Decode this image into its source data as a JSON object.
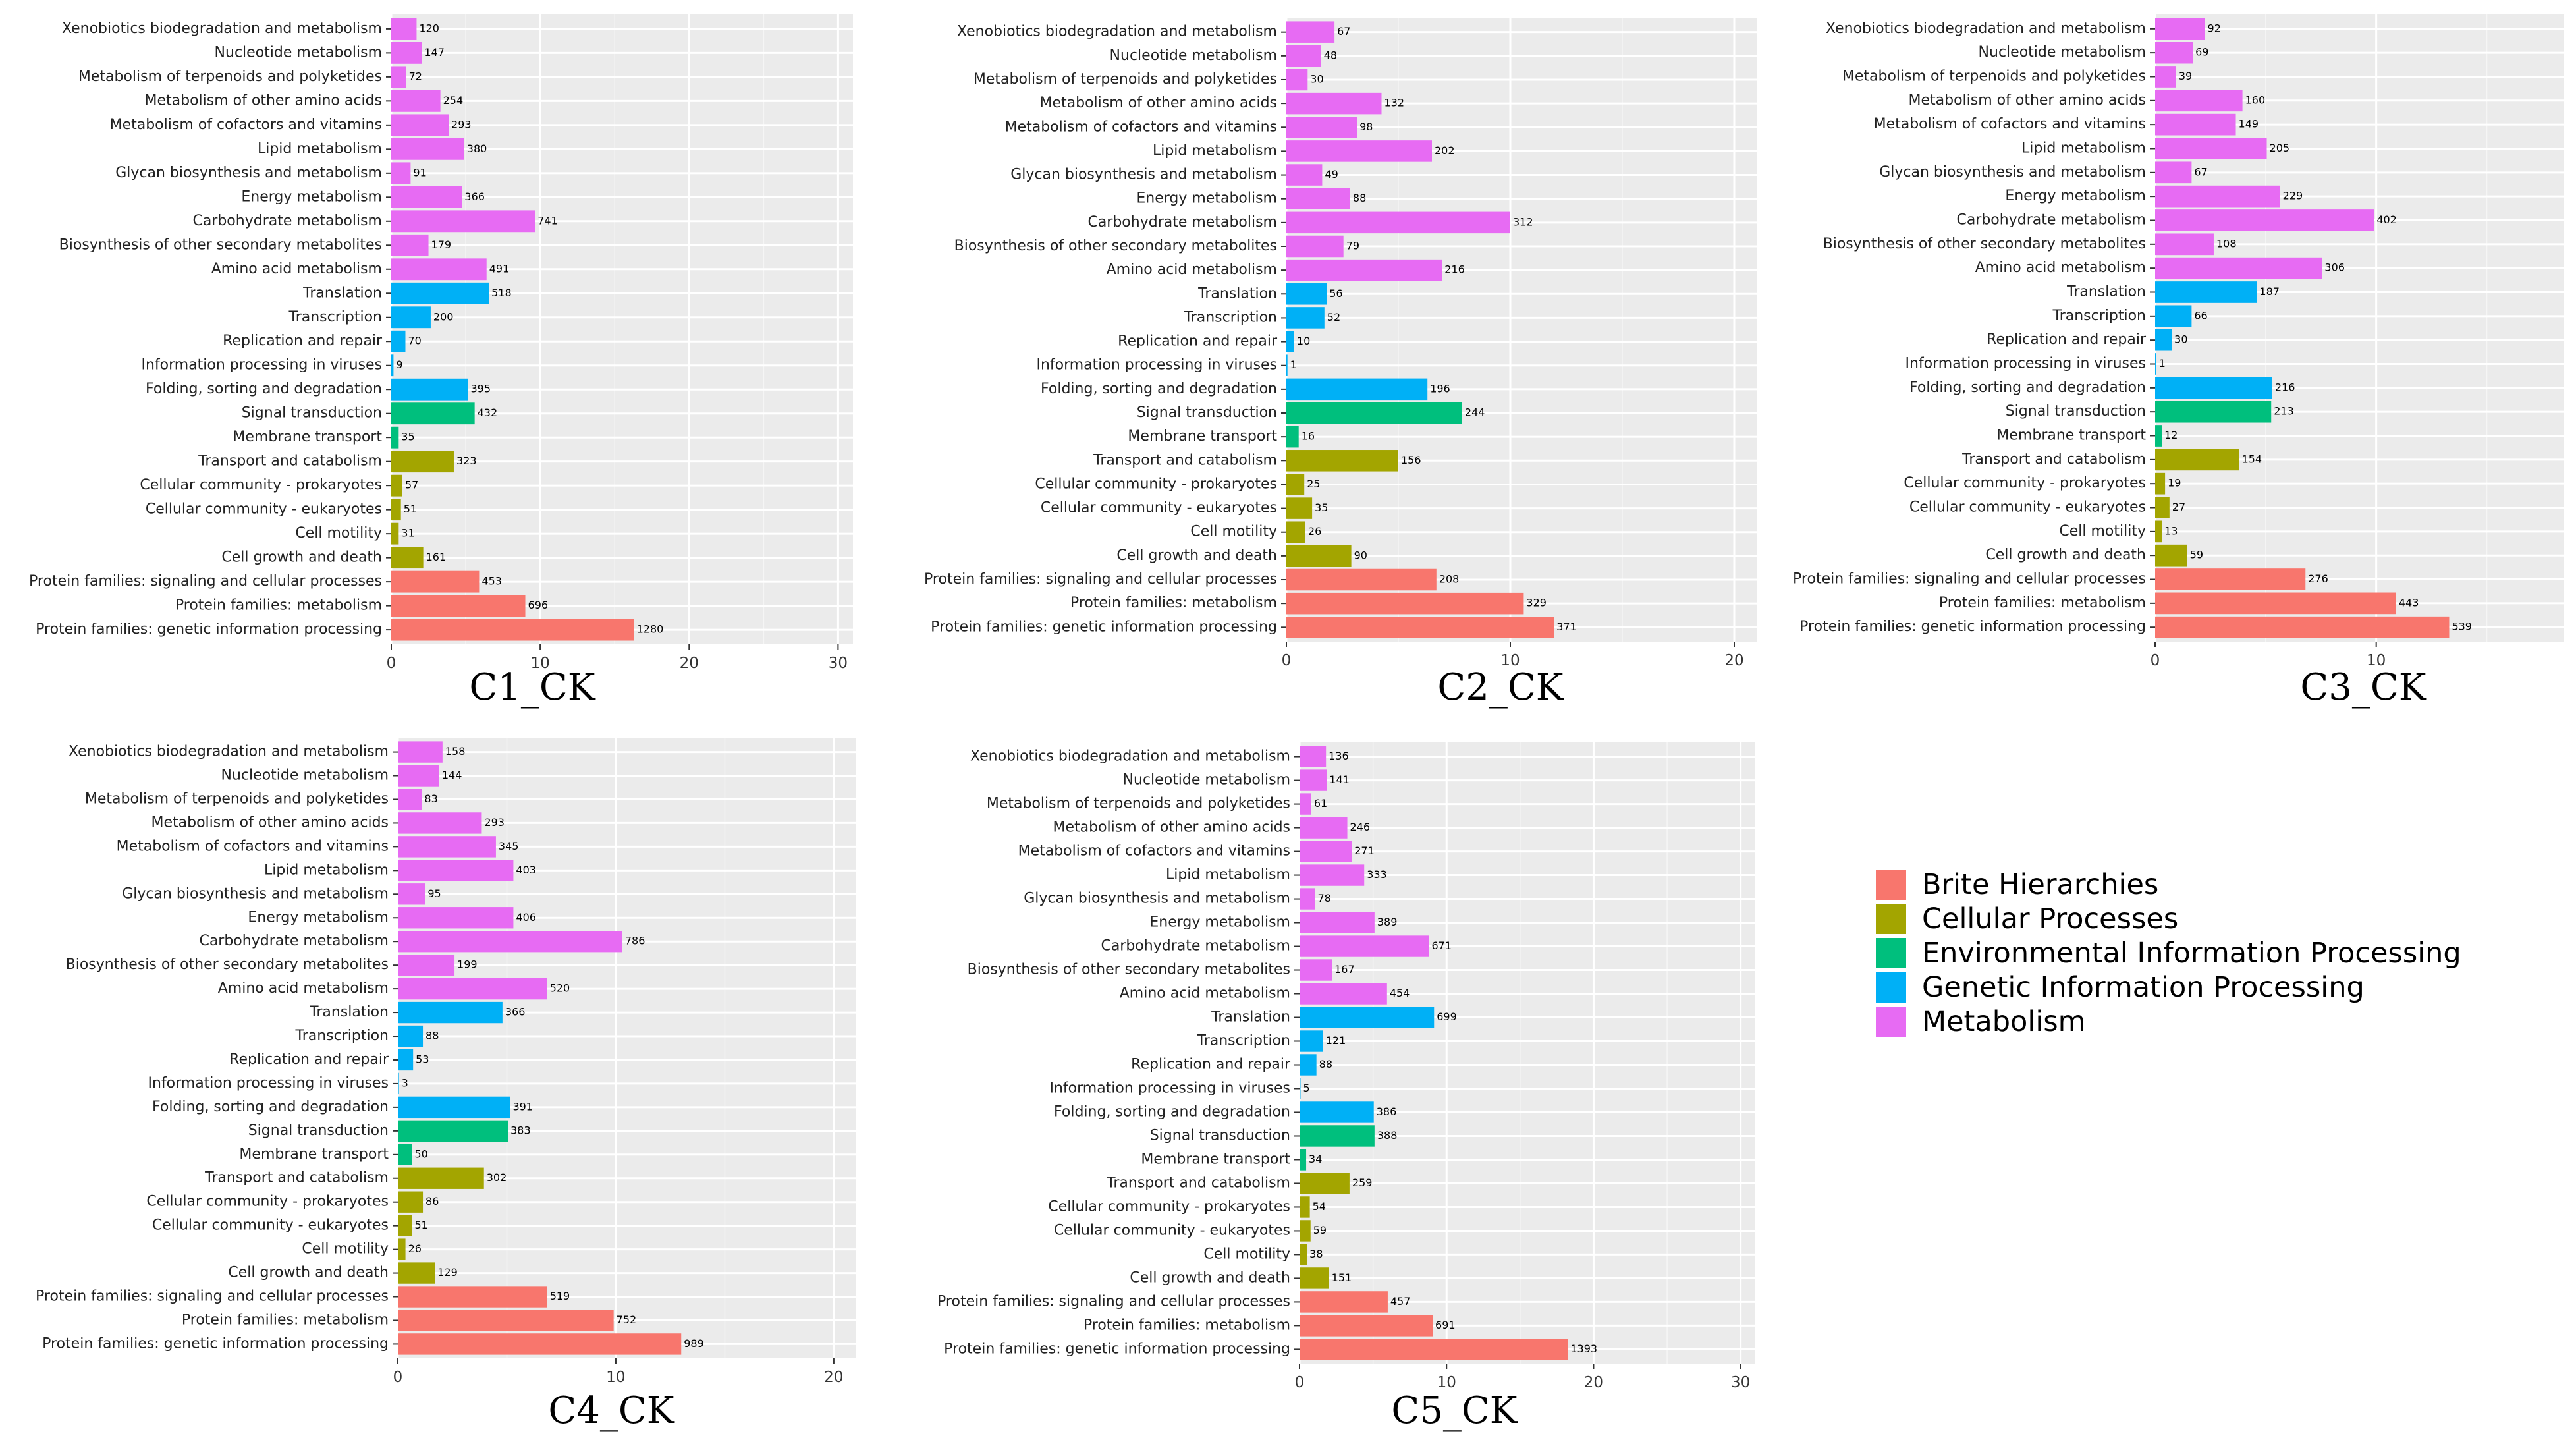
{
  "categories": [
    "Xenobiotics biodegradation and metabolism",
    "Nucleotide metabolism",
    "Metabolism of terpenoids and polyketides",
    "Metabolism of other amino acids",
    "Metabolism of cofactors and vitamins",
    "Lipid metabolism",
    "Glycan biosynthesis and metabolism",
    "Energy metabolism",
    "Carbohydrate metabolism",
    "Biosynthesis of other secondary metabolites",
    "Amino acid metabolism",
    "Translation",
    "Transcription",
    "Replication and repair",
    "Information processing in viruses",
    "Folding, sorting and degradation",
    "Signal transduction",
    "Membrane transport",
    "Transport and catabolism",
    "Cellular community - prokaryotes",
    "Cellular community - eukaryotes",
    "Cell motility",
    "Cell growth and death",
    "Protein families: signaling and cellular processes",
    "Protein families: metabolism",
    "Protein families: genetic information processing"
  ],
  "category_groups": [
    "Metabolism",
    "Metabolism",
    "Metabolism",
    "Metabolism",
    "Metabolism",
    "Metabolism",
    "Metabolism",
    "Metabolism",
    "Metabolism",
    "Metabolism",
    "Metabolism",
    "Genetic Information Processing",
    "Genetic Information Processing",
    "Genetic Information Processing",
    "Genetic Information Processing",
    "Genetic Information Processing",
    "Environmental Information Processing",
    "Environmental Information Processing",
    "Cellular Processes",
    "Cellular Processes",
    "Cellular Processes",
    "Cellular Processes",
    "Cellular Processes",
    "Brite Hierarchies",
    "Brite Hierarchies",
    "Brite Hierarchies"
  ],
  "legend": [
    {
      "label": "Brite Hierarchies",
      "color": "#F8766D"
    },
    {
      "label": "Cellular Processes",
      "color": "#A3A500"
    },
    {
      "label": "Environmental Information Processing",
      "color": "#00BF7D"
    },
    {
      "label": "Genetic Information Processing",
      "color": "#00B0F6"
    },
    {
      "label": "Metabolism",
      "color": "#E76BF3"
    }
  ],
  "chart_data": [
    {
      "type": "bar",
      "orientation": "horizontal",
      "title": "C1_CK",
      "xlim": [
        0,
        31
      ],
      "xticks": [
        0,
        10,
        20,
        30
      ],
      "values": [
        1.7,
        2.05,
        1.0,
        3.3,
        3.85,
        4.9,
        1.3,
        4.75,
        9.65,
        2.5,
        6.4,
        6.55,
        2.65,
        0.95,
        0.15,
        5.15,
        5.6,
        0.5,
        4.2,
        0.75,
        0.65,
        0.5,
        2.15,
        5.9,
        9.0,
        16.3
      ],
      "labels": [
        "120",
        "147",
        "72",
        "254",
        "293",
        "380",
        "91",
        "366",
        "741",
        "179",
        "491",
        "518",
        "200",
        "70",
        "9",
        "395",
        "432",
        "35",
        "323",
        "57",
        "51",
        "31",
        "161",
        "453",
        "696",
        "1280"
      ]
    },
    {
      "type": "bar",
      "orientation": "horizontal",
      "title": "C2_CK",
      "xlim": [
        0,
        21
      ],
      "xticks": [
        0,
        10,
        20
      ],
      "values": [
        2.15,
        1.55,
        0.95,
        4.25,
        3.15,
        6.5,
        1.6,
        2.85,
        10.0,
        2.55,
        6.95,
        1.8,
        1.7,
        0.35,
        0.05,
        6.3,
        7.85,
        0.55,
        5.0,
        0.8,
        1.15,
        0.85,
        2.9,
        6.7,
        10.6,
        11.95
      ],
      "labels": [
        "67",
        "48",
        "30",
        "132",
        "98",
        "202",
        "49",
        "88",
        "312",
        "79",
        "216",
        "56",
        "52",
        "10",
        "1",
        "196",
        "244",
        "16",
        "156",
        "25",
        "35",
        "26",
        "90",
        "208",
        "329",
        "371"
      ]
    },
    {
      "type": "bar",
      "orientation": "horizontal",
      "title": "C3_CK",
      "xlim": [
        0,
        18.5
      ],
      "xticks": [
        0,
        10
      ],
      "values": [
        2.25,
        1.7,
        0.95,
        3.95,
        3.65,
        5.05,
        1.65,
        5.65,
        9.9,
        2.65,
        7.55,
        4.6,
        1.65,
        0.75,
        0.05,
        5.3,
        5.25,
        0.3,
        3.8,
        0.45,
        0.65,
        0.3,
        1.45,
        6.8,
        10.9,
        13.3
      ],
      "labels": [
        "92",
        "69",
        "39",
        "160",
        "149",
        "205",
        "67",
        "229",
        "402",
        "108",
        "306",
        "187",
        "66",
        "30",
        "1",
        "216",
        "213",
        "12",
        "154",
        "19",
        "27",
        "13",
        "59",
        "276",
        "443",
        "539"
      ]
    },
    {
      "type": "bar",
      "orientation": "horizontal",
      "title": "C4_CK",
      "xlim": [
        0,
        21
      ],
      "xticks": [
        0,
        10,
        20
      ],
      "values": [
        2.05,
        1.9,
        1.1,
        3.85,
        4.5,
        5.3,
        1.25,
        5.3,
        10.3,
        2.6,
        6.85,
        4.8,
        1.15,
        0.7,
        0.05,
        5.15,
        5.05,
        0.65,
        3.95,
        1.15,
        0.65,
        0.35,
        1.7,
        6.85,
        9.9,
        13.0
      ],
      "labels": [
        "158",
        "144",
        "83",
        "293",
        "345",
        "403",
        "95",
        "406",
        "786",
        "199",
        "520",
        "366",
        "88",
        "53",
        "3",
        "391",
        "383",
        "50",
        "302",
        "86",
        "51",
        "26",
        "129",
        "519",
        "752",
        "989"
      ]
    },
    {
      "type": "bar",
      "orientation": "horizontal",
      "title": "C5_CK",
      "xlim": [
        0,
        31
      ],
      "xticks": [
        0,
        10,
        20,
        30
      ],
      "values": [
        1.8,
        1.85,
        0.8,
        3.25,
        3.55,
        4.4,
        1.05,
        5.1,
        8.8,
        2.2,
        5.95,
        9.15,
        1.6,
        1.15,
        0.05,
        5.05,
        5.1,
        0.45,
        3.4,
        0.7,
        0.75,
        0.5,
        2.0,
        6.0,
        9.05,
        18.25
      ],
      "labels": [
        "136",
        "141",
        "61",
        "246",
        "271",
        "333",
        "78",
        "389",
        "671",
        "167",
        "454",
        "699",
        "121",
        "88",
        "5",
        "386",
        "388",
        "34",
        "259",
        "54",
        "59",
        "38",
        "151",
        "457",
        "691",
        "1393"
      ]
    }
  ]
}
